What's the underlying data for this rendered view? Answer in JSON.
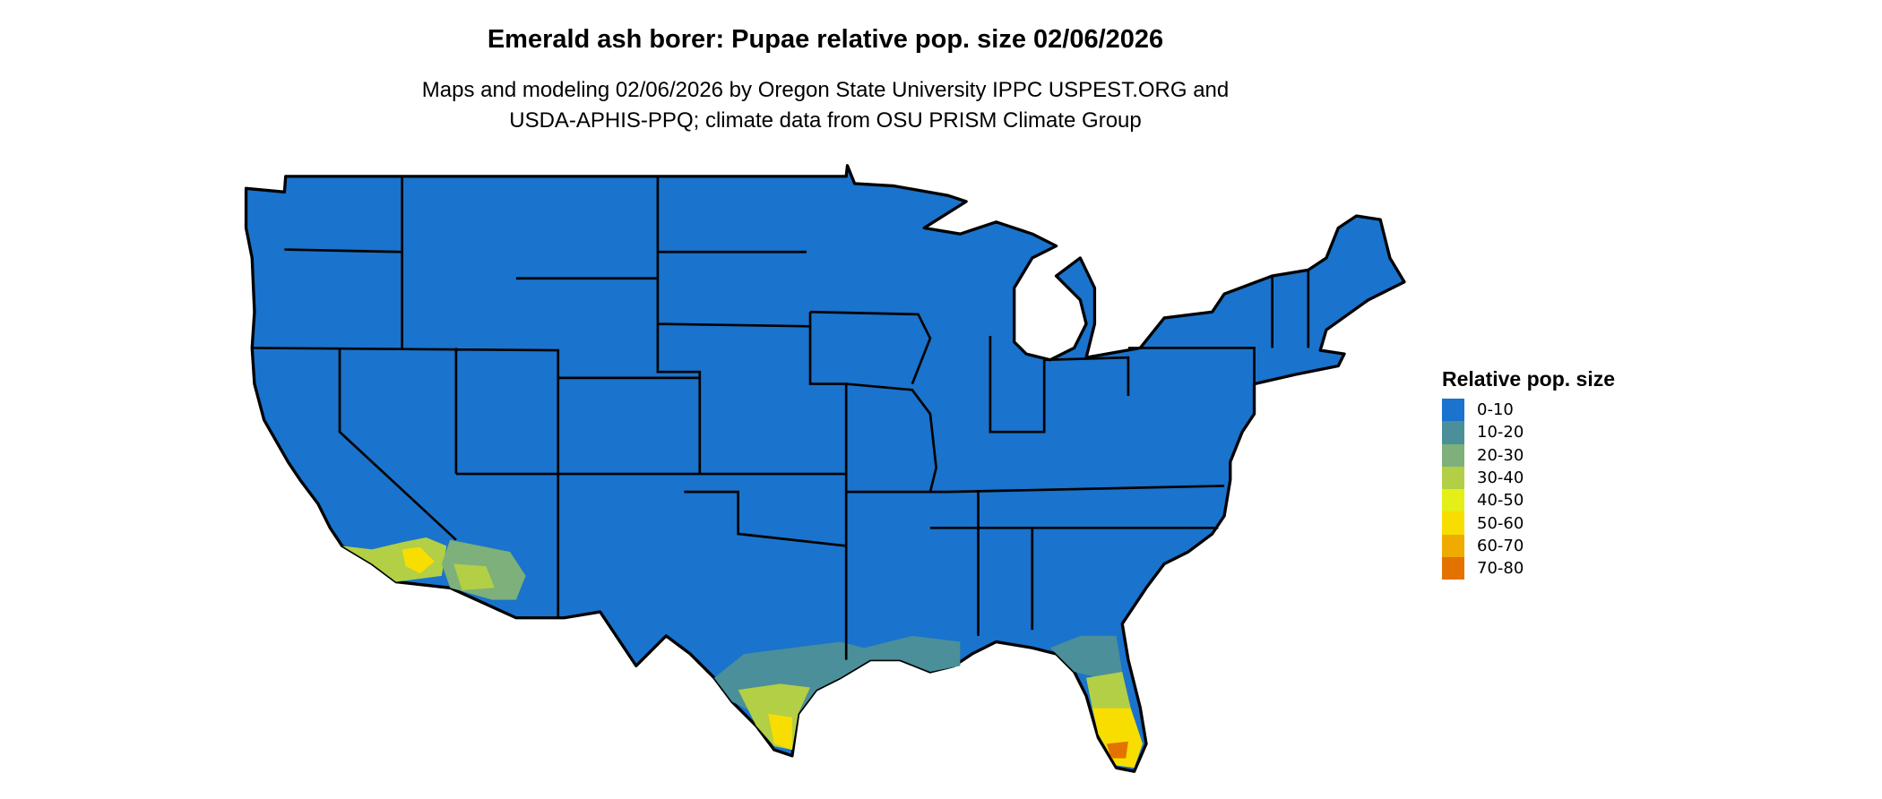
{
  "title": "Emerald ash borer: Pupae relative pop. size 02/06/2026",
  "subtitle_line1": "Maps and modeling 02/06/2026 by Oregon State University IPPC USPEST.ORG and",
  "subtitle_line2": "USDA-APHIS-PPQ; climate data from OSU PRISM Climate Group",
  "legend": {
    "title": "Relative pop. size",
    "items": [
      {
        "label": "0-10",
        "color": "#1a73cc"
      },
      {
        "label": "10-20",
        "color": "#4a8f9a"
      },
      {
        "label": "20-30",
        "color": "#7db07a"
      },
      {
        "label": "30-40",
        "color": "#b2cf45"
      },
      {
        "label": "40-50",
        "color": "#e3ef16"
      },
      {
        "label": "50-60",
        "color": "#f8de00"
      },
      {
        "label": "60-70",
        "color": "#efab00"
      },
      {
        "label": "70-80",
        "color": "#e47200"
      }
    ]
  }
}
